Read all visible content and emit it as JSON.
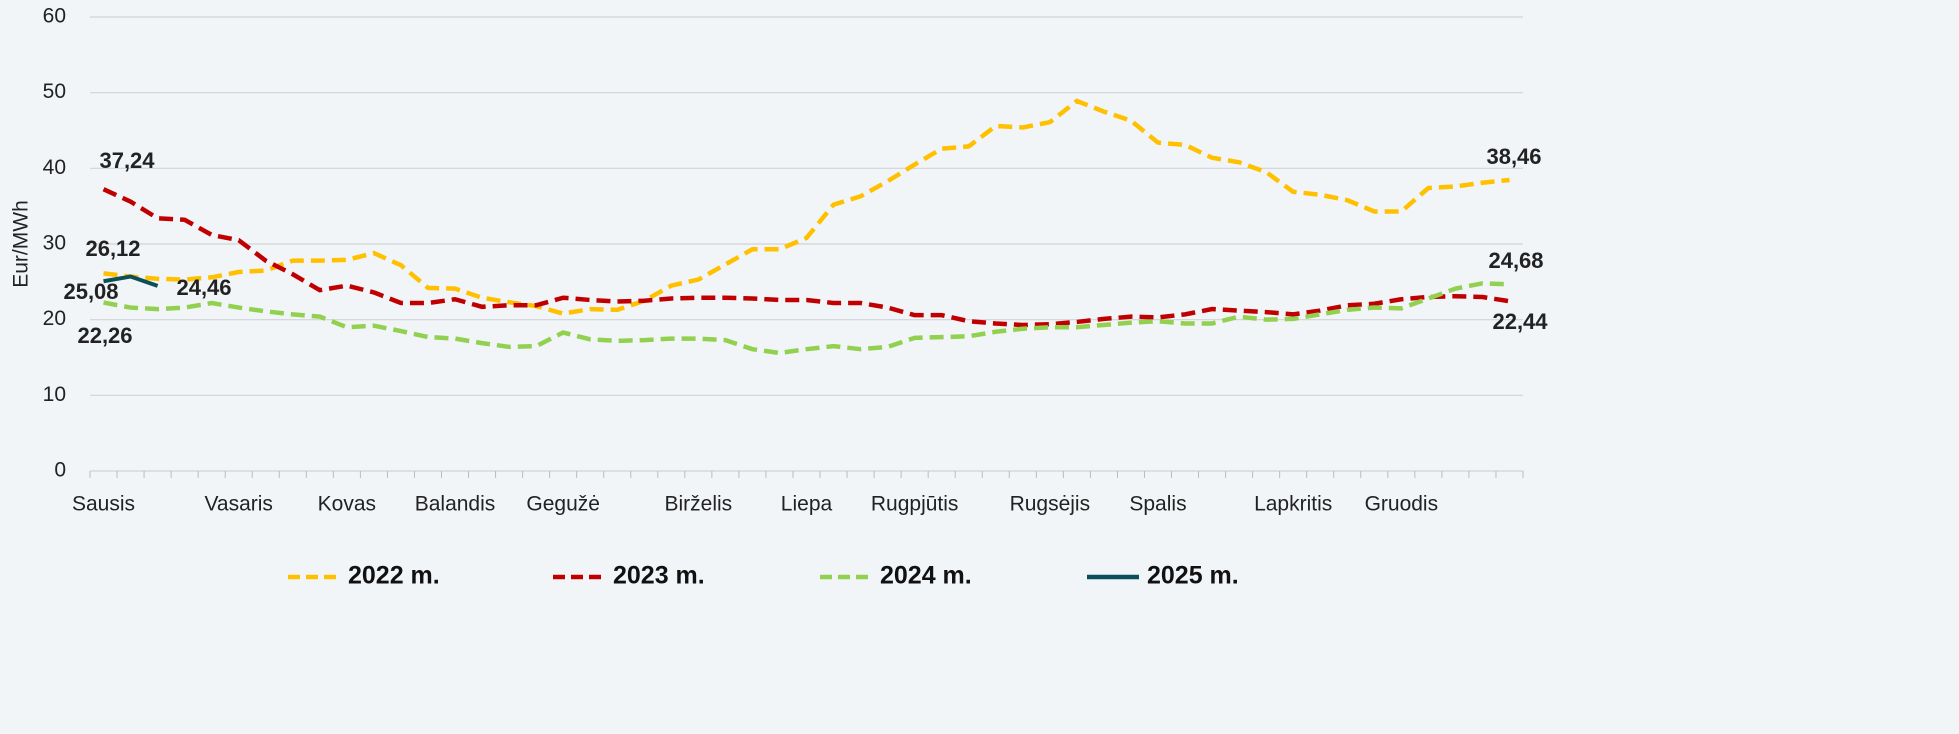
{
  "chart_data": {
    "type": "line",
    "y_label": "Eur/MWh",
    "categories": [
      "Sausis",
      null,
      null,
      null,
      null,
      "Vasaris",
      null,
      null,
      null,
      "Kovas",
      null,
      null,
      null,
      "Balandis",
      null,
      null,
      null,
      "Gegužė",
      null,
      null,
      null,
      null,
      "Birželis",
      null,
      null,
      null,
      "Liepa",
      null,
      null,
      null,
      "Rugpjūtis",
      null,
      null,
      null,
      null,
      "Rugsėjis",
      null,
      null,
      null,
      "Spalis",
      null,
      null,
      null,
      null,
      "Lapkritis",
      null,
      null,
      null,
      "Gruodis",
      null,
      null,
      null,
      null
    ],
    "ylim": [
      0,
      60
    ],
    "yticks": [
      0,
      10,
      20,
      30,
      40,
      50,
      60
    ],
    "grid": true,
    "legend": "bottom",
    "series": [
      {
        "name": "2022 m.",
        "color": "#ffc000",
        "dash": true,
        "values": [
          26.12,
          25.7,
          25.4,
          25.3,
          25.6,
          26.3,
          26.5,
          27.8,
          27.8,
          27.9,
          28.8,
          27.2,
          24.2,
          24.1,
          22.9,
          22.3,
          21.8,
          20.8,
          21.4,
          21.3,
          22.5,
          24.5,
          25.3,
          27.3,
          29.3,
          29.3,
          30.8,
          35.2,
          36.3,
          38.3,
          40.5,
          42.6,
          42.9,
          45.6,
          45.4,
          46.1,
          48.9,
          47.5,
          46.3,
          43.4,
          43.1,
          41.4,
          40.8,
          39.5,
          36.9,
          36.5,
          35.8,
          34.3,
          34.3,
          37.4,
          37.6,
          38.1,
          38.46
        ],
        "value_labels": [
          "26,12",
          null,
          null,
          null,
          null,
          null,
          null,
          null,
          null,
          null,
          null,
          null,
          null,
          null,
          null,
          null,
          null,
          null,
          null,
          null,
          null,
          null,
          null,
          null,
          null,
          null,
          null,
          null,
          null,
          null,
          null,
          null,
          null,
          null,
          null,
          null,
          null,
          null,
          null,
          null,
          null,
          null,
          null,
          null,
          null,
          null,
          null,
          null,
          null,
          null,
          null,
          null,
          "38,46"
        ]
      },
      {
        "name": "2023 m.",
        "color": "#c00000",
        "dash": true,
        "values": [
          37.24,
          35.6,
          33.4,
          33.2,
          31.2,
          30.5,
          27.8,
          26.0,
          23.9,
          24.5,
          23.6,
          22.2,
          22.2,
          22.7,
          21.7,
          21.9,
          21.9,
          22.9,
          22.6,
          22.4,
          22.5,
          22.8,
          22.9,
          22.9,
          22.8,
          22.6,
          22.6,
          22.2,
          22.2,
          21.6,
          20.6,
          20.6,
          19.8,
          19.5,
          19.3,
          19.4,
          19.7,
          20.1,
          20.4,
          20.3,
          20.7,
          21.4,
          21.2,
          21.0,
          20.7,
          21.2,
          21.9,
          22.1,
          22.7,
          23.0,
          23.1,
          23.0,
          22.44
        ],
        "value_labels": [
          "37,24",
          null,
          null,
          null,
          null,
          null,
          null,
          null,
          null,
          null,
          null,
          null,
          null,
          null,
          null,
          null,
          null,
          null,
          null,
          null,
          null,
          null,
          null,
          null,
          null,
          null,
          null,
          null,
          null,
          null,
          null,
          null,
          null,
          null,
          null,
          null,
          null,
          null,
          null,
          null,
          null,
          null,
          null,
          null,
          null,
          null,
          null,
          null,
          null,
          null,
          null,
          null,
          "22,44"
        ]
      },
      {
        "name": "2024 m.",
        "color": "#92d050",
        "dash": true,
        "values": [
          22.26,
          21.6,
          21.4,
          21.6,
          22.2,
          21.6,
          21.1,
          20.7,
          20.4,
          19.0,
          19.2,
          18.5,
          17.7,
          17.5,
          16.9,
          16.4,
          16.5,
          18.3,
          17.4,
          17.2,
          17.3,
          17.5,
          17.5,
          17.3,
          16.1,
          15.6,
          16.1,
          16.5,
          16.1,
          16.4,
          17.6,
          17.7,
          17.8,
          18.4,
          18.8,
          19.0,
          19.0,
          19.3,
          19.6,
          19.8,
          19.5,
          19.5,
          20.4,
          20.0,
          20.1,
          20.7,
          21.3,
          21.6,
          21.5,
          22.8,
          24.1,
          24.8,
          24.68
        ],
        "value_labels": [
          "22,26",
          null,
          null,
          null,
          null,
          null,
          null,
          null,
          null,
          null,
          null,
          null,
          null,
          null,
          null,
          null,
          null,
          null,
          null,
          null,
          null,
          null,
          null,
          null,
          null,
          null,
          null,
          null,
          null,
          null,
          null,
          null,
          null,
          null,
          null,
          null,
          null,
          null,
          null,
          null,
          null,
          null,
          null,
          null,
          null,
          null,
          null,
          null,
          null,
          null,
          null,
          null,
          "24,68"
        ]
      },
      {
        "name": "2025 m.",
        "color": "#0b4f5a",
        "dash": false,
        "values": [
          25.08,
          25.7,
          24.46,
          null,
          null,
          null,
          null,
          null,
          null,
          null,
          null,
          null,
          null,
          null,
          null,
          null,
          null,
          null,
          null,
          null,
          null,
          null,
          null,
          null,
          null,
          null,
          null,
          null,
          null,
          null,
          null,
          null,
          null,
          null,
          null,
          null,
          null,
          null,
          null,
          null,
          null,
          null,
          null,
          null,
          null,
          null,
          null,
          null,
          null,
          null,
          null,
          null,
          null
        ],
        "value_labels": [
          "25,08",
          null,
          "24,46",
          null,
          null,
          null,
          null,
          null,
          null,
          null,
          null,
          null,
          null,
          null,
          null,
          null,
          null,
          null,
          null,
          null,
          null,
          null,
          null,
          null,
          null,
          null,
          null,
          null,
          null,
          null,
          null,
          null,
          null,
          null,
          null,
          null,
          null,
          null,
          null,
          null,
          null,
          null,
          null,
          null,
          null,
          null,
          null,
          null,
          null,
          null,
          null,
          null,
          null
        ]
      }
    ]
  }
}
